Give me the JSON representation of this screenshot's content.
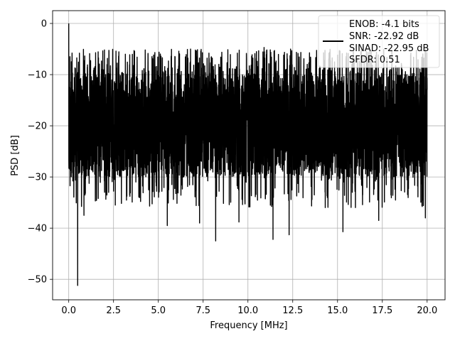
{
  "chart_data": {
    "type": "line",
    "title": "",
    "xlabel": "Frequency [MHz]",
    "ylabel": "PSD [dB]",
    "xlim": [
      -0.9,
      21.0
    ],
    "ylim": [
      -54,
      2.5
    ],
    "xticks": [
      0.0,
      2.5,
      5.0,
      7.5,
      10.0,
      12.5,
      15.0,
      17.5,
      20.0
    ],
    "xtick_labels": [
      "0.0",
      "2.5",
      "5.0",
      "7.5",
      "10.0",
      "12.5",
      "15.0",
      "17.5",
      "20.0"
    ],
    "yticks": [
      0,
      -10,
      -20,
      -30,
      -40,
      -50
    ],
    "ytick_labels": [
      "0",
      "−10",
      "−20",
      "−30",
      "−40",
      "−50"
    ],
    "grid": true,
    "legend_position": "top-right",
    "series": [
      {
        "name_lines": [
          "ENOB: -4.1 bits",
          "SNR: -22.92 dB",
          "SINAD: -22.95 dB",
          "SFDR: 0.51"
        ],
        "color": "#000000",
        "x_range": [
          0.0,
          20.0
        ],
        "points": 4096,
        "typical_range": [
          -30,
          -7
        ],
        "mean": -18,
        "notable_points": [
          {
            "x": 0.0,
            "y": 0.0
          },
          {
            "x": 0.05,
            "y": -13.5
          },
          {
            "x": 0.5,
            "y": -51.2
          },
          {
            "x": 0.85,
            "y": -37.5
          },
          {
            "x": 2.6,
            "y": -35.5
          },
          {
            "x": 5.5,
            "y": -39.5
          },
          {
            "x": 7.3,
            "y": -39.0
          },
          {
            "x": 8.2,
            "y": -42.5
          },
          {
            "x": 9.5,
            "y": -38.8
          },
          {
            "x": 11.4,
            "y": -42.2
          },
          {
            "x": 12.3,
            "y": -41.3
          },
          {
            "x": 15.3,
            "y": -40.7
          },
          {
            "x": 17.3,
            "y": -38.5
          },
          {
            "x": 19.9,
            "y": -38.0
          },
          {
            "x": 6.8,
            "y": -5.0
          },
          {
            "x": 10.9,
            "y": -4.7
          },
          {
            "x": 16.8,
            "y": -5.3
          },
          {
            "x": 19.4,
            "y": -5.2
          }
        ]
      }
    ]
  }
}
